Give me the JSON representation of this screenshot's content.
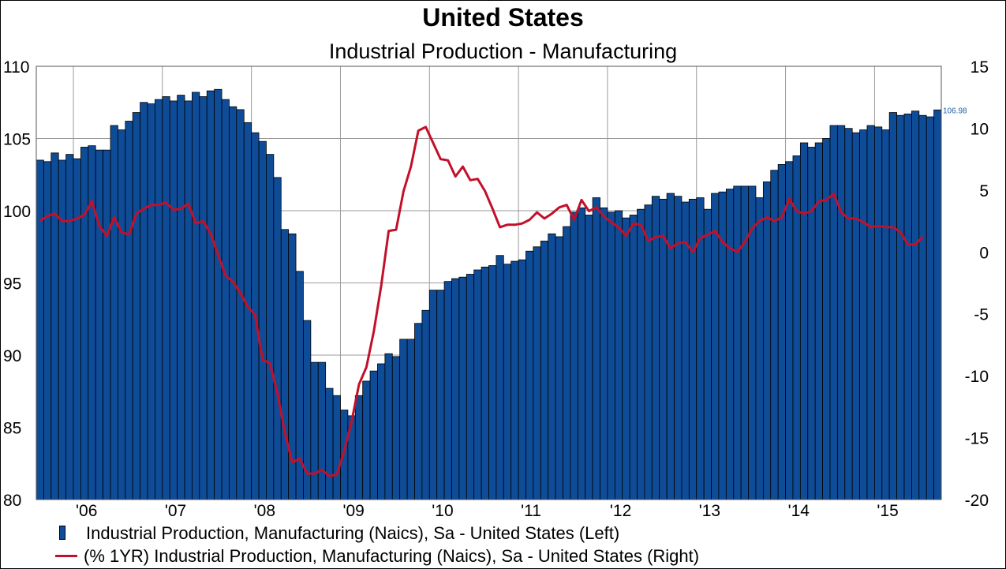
{
  "title": "United States",
  "subtitle": "Industrial Production - Manufacturing",
  "colors": {
    "bar": "#0f4c98",
    "bar_border": "#000000",
    "line": "#c3102a",
    "grid": "#9a9a9a",
    "bar_end_label": "#1f5fa6"
  },
  "chart_data": {
    "type": "bar",
    "x_labels": [
      "'06",
      "'07",
      "'08",
      "'09",
      "'10",
      "'11",
      "'12",
      "'13",
      "'14",
      "'15"
    ],
    "start": "2005-08",
    "end": "2015-08",
    "left_axis": {
      "ticks": [
        "110",
        "105",
        "100",
        "95",
        "90",
        "85",
        "80"
      ],
      "ylim": [
        80,
        110
      ]
    },
    "right_axis": {
      "ticks": [
        "15",
        "10",
        "5",
        "0",
        "-5",
        "-10",
        "-15",
        "-20"
      ],
      "ylim": [
        -20,
        15
      ]
    },
    "grid": true,
    "legend_placement": "bottom",
    "series": [
      {
        "name": "Industrial Production, Manufacturing (Naics), Sa - United States  (Left)",
        "type": "bar",
        "axis": "left",
        "end_label": "106.98",
        "values": [
          103.5,
          103.4,
          104.0,
          103.5,
          103.9,
          103.6,
          104.4,
          104.5,
          104.2,
          104.2,
          105.9,
          105.6,
          106.2,
          106.8,
          107.5,
          107.4,
          107.7,
          107.9,
          107.6,
          108.0,
          107.6,
          108.2,
          107.9,
          108.3,
          108.4,
          107.7,
          107.2,
          107.0,
          106.1,
          105.4,
          104.8,
          103.9,
          102.3,
          98.7,
          98.4,
          95.8,
          92.4,
          89.5,
          89.5,
          87.7,
          87.2,
          86.2,
          85.8,
          87.2,
          88.2,
          88.9,
          89.4,
          90.1,
          89.9,
          91.1,
          91.1,
          92.2,
          93.1,
          94.5,
          94.5,
          95.1,
          95.3,
          95.4,
          95.6,
          95.9,
          96.1,
          96.2,
          96.9,
          96.3,
          96.5,
          96.6,
          97.2,
          97.5,
          97.9,
          98.4,
          98.2,
          98.9,
          99.9,
          100.2,
          99.7,
          100.9,
          100.2,
          99.9,
          100.0,
          99.5,
          99.7,
          100.1,
          100.4,
          101.0,
          100.8,
          101.2,
          101.0,
          100.6,
          100.8,
          100.9,
          100.1,
          101.2,
          101.3,
          101.5,
          101.7,
          101.7,
          101.7,
          100.9,
          102.0,
          102.8,
          103.2,
          103.4,
          103.8,
          104.7,
          104.4,
          104.7,
          105.0,
          105.9,
          105.9,
          105.7,
          105.4,
          105.6,
          105.9,
          105.8,
          105.6,
          106.8,
          106.6,
          106.7,
          106.9,
          106.6,
          106.5,
          106.98
        ]
      },
      {
        "name": "(% 1YR) Industrial Production, Manufacturing (Naics), Sa - United States  (Right)",
        "type": "line",
        "axis": "right",
        "end_label": "1.23",
        "values": [
          2.5,
          2.9,
          3.1,
          2.5,
          2.5,
          2.7,
          3.0,
          4.1,
          2.1,
          1.3,
          2.8,
          1.6,
          1.4,
          3.1,
          3.5,
          3.8,
          3.8,
          4.0,
          3.4,
          3.5,
          3.9,
          2.3,
          2.5,
          1.5,
          -0.2,
          -1.9,
          -2.4,
          -3.3,
          -4.4,
          -5.1,
          -8.7,
          -9.0,
          -11.4,
          -14.6,
          -17.0,
          -16.7,
          -17.9,
          -17.9,
          -17.6,
          -18.1,
          -18.0,
          -16.1,
          -13.7,
          -10.7,
          -9.3,
          -6.4,
          -2.7,
          1.7,
          1.8,
          4.9,
          6.9,
          9.8,
          10.1,
          8.8,
          7.5,
          7.4,
          6.1,
          6.9,
          5.8,
          5.9,
          4.9,
          3.5,
          2.0,
          2.2,
          2.2,
          2.3,
          2.6,
          3.2,
          2.7,
          3.1,
          3.6,
          3.8,
          2.6,
          4.2,
          3.3,
          3.6,
          2.9,
          2.4,
          2.0,
          1.3,
          2.3,
          2.2,
          0.9,
          1.2,
          1.3,
          0.3,
          0.7,
          0.8,
          0.0,
          1.1,
          1.4,
          1.7,
          0.8,
          0.3,
          0.0,
          0.8,
          1.9,
          2.5,
          2.8,
          2.5,
          2.8,
          4.3,
          3.3,
          3.1,
          3.3,
          4.1,
          4.2,
          4.7,
          3.2,
          2.7,
          2.7,
          2.4,
          2.0,
          2.1,
          2.0,
          2.0,
          1.6,
          0.6,
          0.6,
          1.23
        ]
      }
    ]
  }
}
